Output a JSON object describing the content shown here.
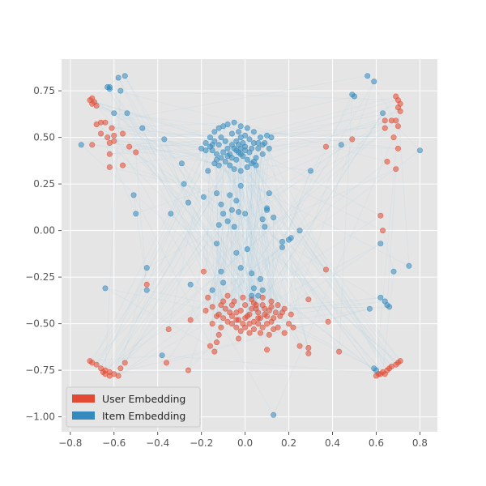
{
  "chart_data": {
    "type": "scatter",
    "title": "",
    "xlabel": "",
    "ylabel": "",
    "xlim": [
      -0.84,
      0.88
    ],
    "ylim": [
      -1.08,
      0.92
    ],
    "xticks": [
      "−0.8",
      "−0.6",
      "−0.4",
      "−0.2",
      "0.0",
      "0.2",
      "0.4",
      "0.6",
      "0.8"
    ],
    "xtick_values": [
      -0.8,
      -0.6,
      -0.4,
      -0.2,
      0.0,
      0.2,
      0.4,
      0.6,
      0.8
    ],
    "yticks": [
      "0.75",
      "0.50",
      "0.25",
      "0.00",
      "−0.25",
      "−0.50",
      "−0.75",
      "−1.00"
    ],
    "ytick_values": [
      0.75,
      0.5,
      0.25,
      0.0,
      -0.25,
      -0.5,
      -0.75,
      -1.0
    ],
    "grid": true,
    "legend_position": "lower-left",
    "connections": "faint light-blue lines link user embeddings to item embeddings",
    "series": [
      {
        "name": "User Embedding",
        "color": "#E24A33",
        "points": [
          [
            -0.7,
            0.71
          ],
          [
            -0.71,
            0.7
          ],
          [
            -0.69,
            0.69
          ],
          [
            -0.7,
            0.68
          ],
          [
            -0.68,
            0.67
          ],
          [
            -0.66,
            0.58
          ],
          [
            -0.64,
            0.58
          ],
          [
            -0.68,
            0.57
          ],
          [
            -0.61,
            0.55
          ],
          [
            -0.66,
            0.52
          ],
          [
            -0.6,
            0.51
          ],
          [
            -0.63,
            0.5
          ],
          [
            -0.56,
            0.52
          ],
          [
            -0.6,
            0.48
          ],
          [
            -0.62,
            0.47
          ],
          [
            -0.7,
            0.46
          ],
          [
            -0.53,
            0.45
          ],
          [
            -0.5,
            0.42
          ],
          [
            -0.62,
            0.41
          ],
          [
            -0.56,
            0.35
          ],
          [
            -0.62,
            0.34
          ],
          [
            0.69,
            0.72
          ],
          [
            0.7,
            0.7
          ],
          [
            0.71,
            0.68
          ],
          [
            0.7,
            0.66
          ],
          [
            0.71,
            0.64
          ],
          [
            0.67,
            0.59
          ],
          [
            0.69,
            0.59
          ],
          [
            0.64,
            0.59
          ],
          [
            0.7,
            0.56
          ],
          [
            0.64,
            0.55
          ],
          [
            0.68,
            0.5
          ],
          [
            0.7,
            0.44
          ],
          [
            0.65,
            0.37
          ],
          [
            0.69,
            0.33
          ],
          [
            0.62,
            0.08
          ],
          [
            0.63,
            0.0
          ],
          [
            0.37,
            0.45
          ],
          [
            0.49,
            0.49
          ],
          [
            -0.71,
            -0.7
          ],
          [
            -0.7,
            -0.71
          ],
          [
            -0.68,
            -0.72
          ],
          [
            -0.66,
            -0.74
          ],
          [
            -0.64,
            -0.75
          ],
          [
            -0.62,
            -0.76
          ],
          [
            -0.65,
            -0.76
          ],
          [
            -0.6,
            -0.77
          ],
          [
            -0.58,
            -0.78
          ],
          [
            -0.62,
            -0.78
          ],
          [
            -0.64,
            -0.77
          ],
          [
            -0.57,
            -0.74
          ],
          [
            -0.55,
            -0.71
          ],
          [
            0.71,
            -0.7
          ],
          [
            0.7,
            -0.71
          ],
          [
            0.69,
            -0.72
          ],
          [
            0.67,
            -0.73
          ],
          [
            0.65,
            -0.75
          ],
          [
            0.63,
            -0.76
          ],
          [
            0.61,
            -0.77
          ],
          [
            0.6,
            -0.78
          ],
          [
            0.62,
            -0.77
          ],
          [
            0.64,
            -0.77
          ],
          [
            0.66,
            -0.74
          ],
          [
            -0.45,
            -0.29
          ],
          [
            -0.35,
            -0.53
          ],
          [
            -0.25,
            -0.48
          ],
          [
            -0.19,
            -0.22
          ],
          [
            -0.36,
            -0.71
          ],
          [
            -0.26,
            -0.75
          ],
          [
            0.37,
            -0.21
          ],
          [
            0.43,
            -0.65
          ],
          [
            0.29,
            -0.66
          ],
          [
            0.29,
            -0.63
          ],
          [
            0.25,
            -0.62
          ],
          [
            0.38,
            -0.49
          ],
          [
            0.29,
            -0.37
          ],
          [
            0.1,
            -0.64
          ],
          [
            0.21,
            -0.45
          ],
          [
            -0.17,
            -0.36
          ],
          [
            -0.15,
            -0.41
          ],
          [
            -0.12,
            -0.45
          ],
          [
            -0.11,
            -0.52
          ],
          [
            -0.13,
            -0.6
          ],
          [
            -0.16,
            -0.62
          ],
          [
            -0.14,
            -0.65
          ],
          [
            -0.18,
            -0.43
          ],
          [
            -0.1,
            -0.38
          ],
          [
            -0.08,
            -0.35
          ],
          [
            -0.06,
            -0.4
          ],
          [
            -0.04,
            -0.44
          ],
          [
            -0.03,
            -0.48
          ],
          [
            -0.01,
            -0.5
          ],
          [
            0.01,
            -0.46
          ],
          [
            0.03,
            -0.42
          ],
          [
            0.04,
            -0.39
          ],
          [
            0.06,
            -0.44
          ],
          [
            0.07,
            -0.47
          ],
          [
            0.09,
            -0.45
          ],
          [
            0.11,
            -0.43
          ],
          [
            0.12,
            -0.41
          ],
          [
            0.14,
            -0.44
          ],
          [
            0.16,
            -0.46
          ],
          [
            0.18,
            -0.42
          ],
          [
            0.2,
            -0.5
          ],
          [
            0.22,
            -0.52
          ],
          [
            0.18,
            -0.55
          ],
          [
            0.15,
            -0.52
          ],
          [
            0.12,
            -0.49
          ],
          [
            0.1,
            -0.5
          ],
          [
            0.08,
            -0.52
          ],
          [
            0.06,
            -0.5
          ],
          [
            0.04,
            -0.53
          ],
          [
            0.02,
            -0.55
          ],
          [
            0.0,
            -0.52
          ],
          [
            -0.02,
            -0.54
          ],
          [
            -0.04,
            -0.52
          ],
          [
            -0.06,
            -0.5
          ],
          [
            -0.08,
            -0.49
          ],
          [
            -0.1,
            -0.47
          ],
          [
            -0.05,
            -0.38
          ],
          [
            0.0,
            -0.4
          ],
          [
            0.05,
            -0.42
          ],
          [
            0.03,
            -0.37
          ],
          [
            0.08,
            -0.4
          ],
          [
            -0.02,
            -0.43
          ],
          [
            0.02,
            -0.45
          ],
          [
            0.06,
            -0.47
          ],
          [
            0.09,
            -0.42
          ],
          [
            0.13,
            -0.47
          ],
          [
            0.17,
            -0.44
          ],
          [
            -0.07,
            -0.44
          ],
          [
            -0.09,
            -0.42
          ],
          [
            0.0,
            -0.47
          ],
          [
            -0.12,
            -0.56
          ],
          [
            -0.03,
            -0.58
          ],
          [
            0.07,
            -0.55
          ],
          [
            0.13,
            -0.53
          ],
          [
            0.11,
            -0.56
          ],
          [
            -0.15,
            -0.5
          ],
          [
            -0.13,
            -0.46
          ],
          [
            0.05,
            -0.4
          ],
          [
            -0.01,
            -0.36
          ],
          [
            0.08,
            -0.36
          ],
          [
            0.02,
            -0.5
          ],
          [
            0.04,
            -0.49
          ],
          [
            -0.06,
            -0.46
          ],
          [
            -0.04,
            -0.48
          ],
          [
            0.1,
            -0.46
          ],
          [
            0.12,
            -0.38
          ],
          [
            0.15,
            -0.4
          ],
          [
            -0.11,
            -0.4
          ]
        ]
      },
      {
        "name": "Item Embedding",
        "color": "#348ABD",
        "points": [
          [
            -0.62,
            0.77
          ],
          [
            -0.63,
            0.77
          ],
          [
            -0.62,
            0.76
          ],
          [
            -0.58,
            0.82
          ],
          [
            -0.55,
            0.83
          ],
          [
            -0.57,
            0.75
          ],
          [
            -0.75,
            0.46
          ],
          [
            -0.54,
            0.63
          ],
          [
            -0.6,
            0.63
          ],
          [
            -0.47,
            0.55
          ],
          [
            -0.37,
            0.49
          ],
          [
            -0.51,
            0.19
          ],
          [
            -0.5,
            0.09
          ],
          [
            -0.34,
            0.09
          ],
          [
            -0.29,
            0.36
          ],
          [
            -0.28,
            0.25
          ],
          [
            -0.26,
            0.15
          ],
          [
            -0.64,
            -0.31
          ],
          [
            -0.45,
            -0.2
          ],
          [
            -0.45,
            -0.32
          ],
          [
            -0.25,
            -0.29
          ],
          [
            -0.38,
            -0.67
          ],
          [
            0.56,
            0.83
          ],
          [
            0.59,
            0.8
          ],
          [
            0.49,
            0.73
          ],
          [
            0.5,
            0.72
          ],
          [
            0.63,
            0.63
          ],
          [
            0.44,
            0.46
          ],
          [
            0.8,
            0.43
          ],
          [
            0.3,
            0.32
          ],
          [
            0.62,
            -0.07
          ],
          [
            0.68,
            -0.22
          ],
          [
            0.75,
            -0.19
          ],
          [
            0.62,
            -0.36
          ],
          [
            0.57,
            -0.42
          ],
          [
            0.65,
            -0.4
          ],
          [
            0.66,
            -0.41
          ],
          [
            0.64,
            -0.38
          ],
          [
            0.6,
            -0.75
          ],
          [
            0.59,
            -0.74
          ],
          [
            0.25,
            0.0
          ],
          [
            0.21,
            -0.04
          ],
          [
            0.2,
            -0.05
          ],
          [
            0.17,
            -0.06
          ],
          [
            0.17,
            -0.09
          ],
          [
            0.13,
            -0.99
          ],
          [
            0.13,
            0.07
          ],
          [
            -0.19,
            0.18
          ],
          [
            -0.13,
            0.2
          ],
          [
            -0.11,
            0.14
          ],
          [
            -0.1,
            0.09
          ],
          [
            -0.07,
            0.19
          ],
          [
            -0.04,
            0.16
          ],
          [
            -0.06,
            0.11
          ],
          [
            -0.03,
            0.1
          ],
          [
            -0.08,
            0.05
          ],
          [
            -0.05,
            0.02
          ],
          [
            -0.12,
            0.03
          ],
          [
            -0.13,
            -0.07
          ],
          [
            -0.04,
            -0.12
          ],
          [
            -0.02,
            -0.2
          ],
          [
            -0.11,
            -0.22
          ],
          [
            -0.1,
            -0.28
          ],
          [
            -0.15,
            -0.32
          ],
          [
            0.03,
            -0.23
          ],
          [
            0.04,
            -0.31
          ],
          [
            0.07,
            -0.26
          ],
          [
            0.08,
            -0.32
          ],
          [
            0.06,
            -0.35
          ],
          [
            0.03,
            -0.35
          ],
          [
            0.0,
            0.09
          ],
          [
            0.01,
            -0.1
          ],
          [
            0.08,
            0.06
          ],
          [
            0.1,
            0.12
          ],
          [
            0.09,
            0.02
          ],
          [
            0.11,
            0.2
          ],
          [
            -0.02,
            0.24
          ],
          [
            0.1,
            0.11
          ],
          [
            -0.14,
            0.36
          ],
          [
            -0.17,
            0.32
          ],
          [
            0.04,
            0.37
          ],
          [
            -0.2,
            0.44
          ],
          [
            -0.18,
            0.47
          ],
          [
            -0.16,
            0.5
          ],
          [
            -0.14,
            0.53
          ],
          [
            -0.12,
            0.55
          ],
          [
            -0.1,
            0.56
          ],
          [
            -0.08,
            0.57
          ],
          [
            -0.05,
            0.58
          ],
          [
            -0.02,
            0.56
          ],
          [
            0.01,
            0.55
          ],
          [
            0.04,
            0.53
          ],
          [
            0.07,
            0.5
          ],
          [
            0.09,
            0.47
          ],
          [
            0.11,
            0.44
          ],
          [
            0.12,
            0.5
          ],
          [
            0.1,
            0.51
          ],
          [
            -0.15,
            0.43
          ],
          [
            -0.13,
            0.41
          ],
          [
            -0.11,
            0.39
          ],
          [
            -0.09,
            0.37
          ],
          [
            -0.07,
            0.35
          ],
          [
            -0.05,
            0.33
          ],
          [
            -0.02,
            0.32
          ],
          [
            0.01,
            0.34
          ],
          [
            0.03,
            0.36
          ],
          [
            0.05,
            0.39
          ],
          [
            0.08,
            0.41
          ],
          [
            0.06,
            0.44
          ],
          [
            0.04,
            0.47
          ],
          [
            0.02,
            0.49
          ],
          [
            0.0,
            0.51
          ],
          [
            -0.02,
            0.5
          ],
          [
            -0.04,
            0.48
          ],
          [
            -0.06,
            0.46
          ],
          [
            -0.08,
            0.44
          ],
          [
            -0.1,
            0.42
          ],
          [
            -0.12,
            0.46
          ],
          [
            -0.14,
            0.48
          ],
          [
            -0.16,
            0.45
          ],
          [
            -0.18,
            0.43
          ],
          [
            -0.03,
            0.42
          ],
          [
            -0.01,
            0.4
          ],
          [
            0.02,
            0.42
          ],
          [
            -0.05,
            0.44
          ],
          [
            -0.07,
            0.41
          ],
          [
            -0.09,
            0.48
          ],
          [
            -0.11,
            0.5
          ],
          [
            -0.06,
            0.52
          ],
          [
            -0.03,
            0.53
          ],
          [
            0.0,
            0.45
          ],
          [
            0.03,
            0.44
          ],
          [
            -0.04,
            0.38
          ],
          [
            -0.06,
            0.39
          ],
          [
            0.06,
            0.47
          ],
          [
            0.08,
            0.46
          ],
          [
            -0.13,
            0.38
          ],
          [
            -0.12,
            0.35
          ],
          [
            -0.01,
            0.47
          ],
          [
            -0.02,
            0.44
          ],
          [
            -0.08,
            0.4
          ],
          [
            0.01,
            0.38
          ],
          [
            0.05,
            0.35
          ],
          [
            -0.15,
            0.46
          ],
          [
            -0.04,
            0.43
          ],
          [
            -0.02,
            0.41
          ],
          [
            -0.03,
            0.46
          ],
          [
            0.0,
            0.43
          ]
        ]
      }
    ]
  },
  "legend": {
    "entries": [
      {
        "label": "User Embedding",
        "color": "#E24A33"
      },
      {
        "label": "Item Embedding",
        "color": "#348ABD"
      }
    ]
  },
  "style": {
    "plot_bg": "#E5E5E5",
    "grid_color": "#FFFFFF",
    "line_color": "#A6CEE3"
  }
}
